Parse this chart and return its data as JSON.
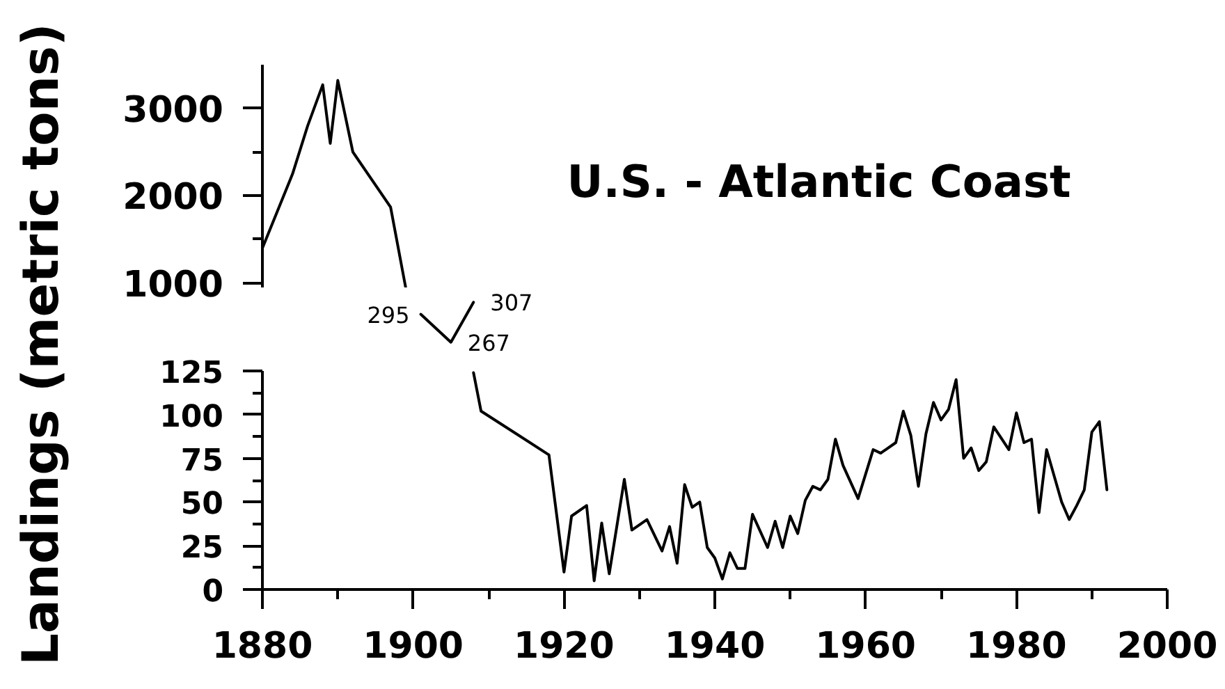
{
  "chart_data": [
    {
      "type": "line",
      "title": "U.S. - Atlantic Coast",
      "x": [
        1880,
        1884,
        1886,
        1888,
        1889,
        1890,
        1892,
        1897,
        1899
      ],
      "series": [
        {
          "color": "#000000",
          "values": [
            1400,
            2250,
            2800,
            3270,
            2600,
            3320,
            2500,
            1870,
            950
          ]
        }
      ],
      "xlim": [
        1880,
        2000
      ],
      "ylim": [
        950,
        3500
      ],
      "yticks": [
        1000,
        {
          "value": 1500,
          "label": null
        },
        2000,
        {
          "value": 2500,
          "label": null
        },
        3000
      ],
      "tick_labels": "y"
    },
    {
      "type": "line",
      "x": [
        1901,
        1905,
        1908
      ],
      "series": [
        {
          "color": "#000000",
          "values": [
            295,
            267,
            307
          ]
        }
      ],
      "xlim": [
        1880,
        2000
      ],
      "data_labels": true,
      "tick_labels": false
    },
    {
      "type": "line",
      "ylabel": "Landings (metric tons)",
      "x": [
        1908,
        1909,
        1918,
        1920,
        1921,
        1923,
        1924,
        1925,
        1926,
        1928,
        1929,
        1931,
        1932,
        1933,
        1934,
        1935,
        1936,
        1937,
        1938,
        1939,
        1940,
        1941,
        1942,
        1943,
        1944,
        1945,
        1947,
        1948,
        1949,
        1950,
        1951,
        1952,
        1953,
        1954,
        1955,
        1956,
        1957,
        1959,
        1961,
        1962,
        1964,
        1965,
        1966,
        1967,
        1968,
        1969,
        1970,
        1971,
        1972,
        1973,
        1974,
        1975,
        1976,
        1977,
        1979,
        1980,
        1981,
        1982,
        1983,
        1984,
        1985,
        1986,
        1987,
        1988,
        1989,
        1990,
        1991,
        1992
      ],
      "series": [
        {
          "color": "#000000",
          "values": [
            124,
            102,
            77,
            10,
            42,
            48,
            5,
            38,
            9,
            63,
            34,
            40,
            31,
            22,
            36,
            15,
            60,
            47,
            50,
            24,
            18,
            6,
            21,
            12,
            12,
            43,
            24,
            39,
            24,
            42,
            32,
            51,
            59,
            57,
            63,
            86,
            71,
            52,
            80,
            78,
            84,
            102,
            88,
            59,
            89,
            107,
            97,
            103,
            120,
            75,
            81,
            68,
            73,
            93,
            80,
            101,
            84,
            86,
            44,
            80,
            65,
            50,
            40,
            48,
            57,
            90,
            96,
            57
          ]
        }
      ],
      "xlim": [
        1880,
        2000
      ],
      "xticks": [
        1880,
        {
          "value": 1890,
          "label": null
        },
        1900,
        {
          "value": 1910,
          "label": null
        },
        1920,
        {
          "value": 1930,
          "label": null
        },
        1940,
        {
          "value": 1950,
          "label": null
        },
        1960,
        {
          "value": 1970,
          "label": null
        },
        1980,
        {
          "value": 1990,
          "label": null
        },
        2000
      ],
      "ylim": [
        0,
        125
      ],
      "yticks": [
        0,
        {
          "value": 12.5,
          "label": null
        },
        25,
        {
          "value": 37.5,
          "label": null
        },
        50,
        {
          "value": 62.5,
          "label": null
        },
        75,
        {
          "value": 87.5,
          "label": null
        },
        100,
        {
          "value": 112.5,
          "label": null
        },
        125
      ]
    }
  ]
}
